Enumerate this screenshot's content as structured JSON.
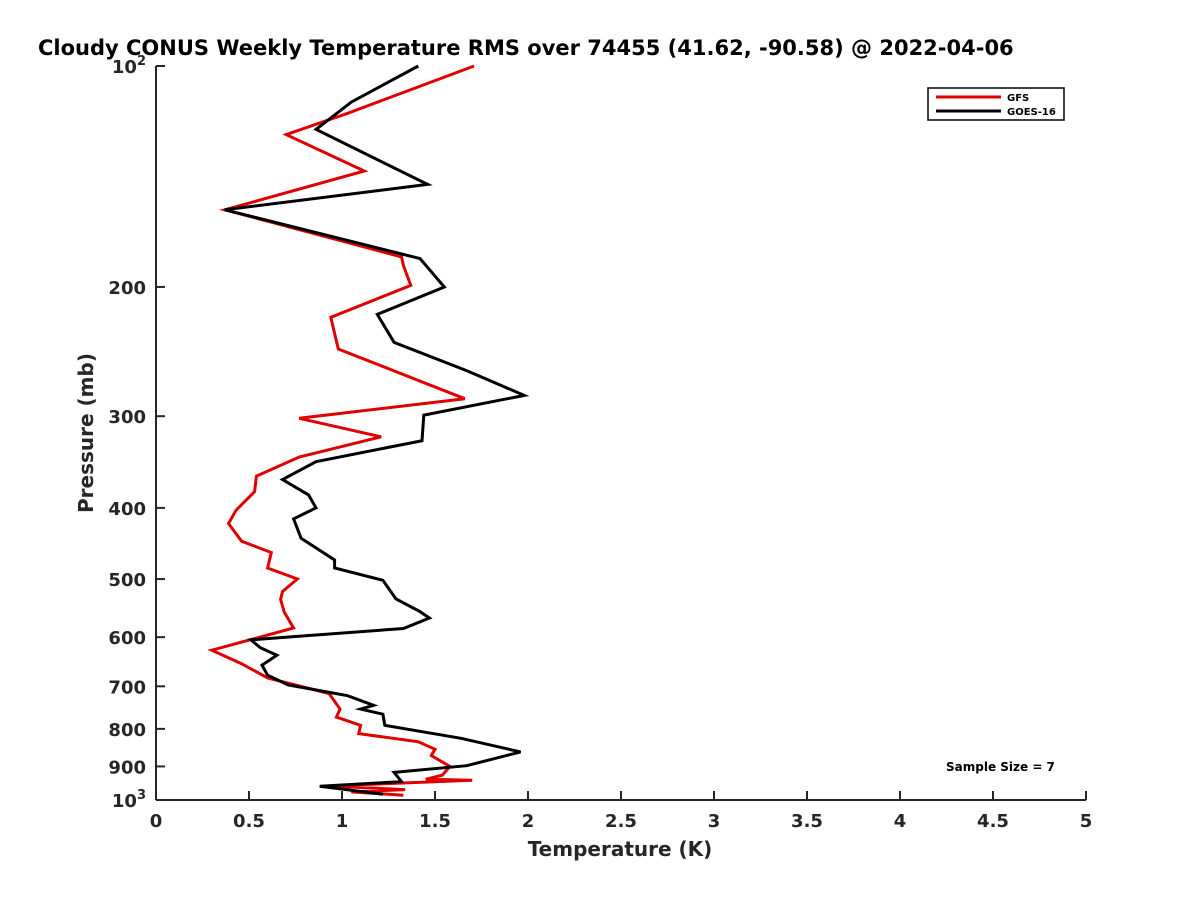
{
  "chart_data": {
    "type": "line",
    "title": "Cloudy CONUS Weekly Temperature RMS over 74455 (41.62, -90.58) @ 2022-04-06",
    "xlabel": "Temperature (K)",
    "ylabel": "Pressure (mb)",
    "xlim": [
      0,
      5
    ],
    "ylim": [
      100,
      1000
    ],
    "y_scale": "log",
    "y_reversed": true,
    "grid": false,
    "legend_position": "top-right",
    "x_ticks": [
      0,
      0.5,
      1,
      1.5,
      2,
      2.5,
      3,
      3.5,
      4,
      4.5,
      5
    ],
    "x_tick_labels": [
      "0",
      "0.5",
      "1",
      "1.5",
      "2",
      "2.5",
      "3",
      "3.5",
      "4",
      "4.5",
      "5"
    ],
    "y_ticks": [
      {
        "value": 100,
        "label": "10",
        "sup": "2"
      },
      {
        "value": 200,
        "label": "200",
        "sup": ""
      },
      {
        "value": 300,
        "label": "300",
        "sup": ""
      },
      {
        "value": 400,
        "label": "400",
        "sup": ""
      },
      {
        "value": 500,
        "label": "500",
        "sup": ""
      },
      {
        "value": 600,
        "label": "600",
        "sup": ""
      },
      {
        "value": 700,
        "label": "700",
        "sup": ""
      },
      {
        "value": 800,
        "label": "800",
        "sup": ""
      },
      {
        "value": 900,
        "label": "900",
        "sup": ""
      },
      {
        "value": 1000,
        "label": "10",
        "sup": "3"
      }
    ],
    "annotation": "Sample Size = 7",
    "series": [
      {
        "name": "GFS",
        "color": "#e00000",
        "points": [
          [
            1.71,
            100
          ],
          [
            1.03,
            116
          ],
          [
            0.7,
            124
          ],
          [
            1.12,
            139
          ],
          [
            0.37,
            157
          ],
          [
            1.32,
            182
          ],
          [
            1.33,
            187
          ],
          [
            1.37,
            199
          ],
          [
            0.94,
            220
          ],
          [
            0.98,
            243
          ],
          [
            1.66,
            284
          ],
          [
            0.77,
            302
          ],
          [
            1.21,
            320
          ],
          [
            0.77,
            341
          ],
          [
            0.54,
            362
          ],
          [
            0.53,
            380
          ],
          [
            0.43,
            403
          ],
          [
            0.39,
            420
          ],
          [
            0.46,
            444
          ],
          [
            0.62,
            460
          ],
          [
            0.6,
            483
          ],
          [
            0.76,
            500
          ],
          [
            0.68,
            520
          ],
          [
            0.67,
            533
          ],
          [
            0.69,
            555
          ],
          [
            0.74,
            583
          ],
          [
            0.3,
            625
          ],
          [
            0.46,
            652
          ],
          [
            0.6,
            682
          ],
          [
            0.93,
            716
          ],
          [
            0.99,
            752
          ],
          [
            0.97,
            771
          ],
          [
            1.1,
            791
          ],
          [
            1.09,
            812
          ],
          [
            1.41,
            833
          ],
          [
            1.5,
            853
          ],
          [
            1.48,
            870
          ],
          [
            1.58,
            900
          ],
          [
            1.54,
            925
          ],
          [
            1.45,
            937
          ],
          [
            1.7,
            940
          ],
          [
            0.93,
            957
          ],
          [
            1.34,
            968
          ],
          [
            1.05,
            975
          ],
          [
            1.33,
            985
          ]
        ]
      },
      {
        "name": "GOES-16",
        "color": "#000000",
        "points": [
          [
            1.41,
            100
          ],
          [
            1.05,
            112
          ],
          [
            0.86,
            122
          ],
          [
            1.46,
            145
          ],
          [
            0.37,
            157
          ],
          [
            1.42,
            183
          ],
          [
            1.55,
            200
          ],
          [
            1.19,
            218
          ],
          [
            1.28,
            238
          ],
          [
            1.67,
            260
          ],
          [
            1.98,
            281
          ],
          [
            1.44,
            299
          ],
          [
            1.43,
            324
          ],
          [
            0.86,
            346
          ],
          [
            0.68,
            366
          ],
          [
            0.82,
            384
          ],
          [
            0.86,
            400
          ],
          [
            0.74,
            414
          ],
          [
            0.78,
            440
          ],
          [
            0.96,
            471
          ],
          [
            0.96,
            483
          ],
          [
            1.22,
            502
          ],
          [
            1.29,
            532
          ],
          [
            1.42,
            554
          ],
          [
            1.47,
            565
          ],
          [
            1.33,
            584
          ],
          [
            0.51,
            605
          ],
          [
            0.56,
            620
          ],
          [
            0.65,
            635
          ],
          [
            0.57,
            655
          ],
          [
            0.6,
            676
          ],
          [
            0.71,
            697
          ],
          [
            1.03,
            721
          ],
          [
            1.17,
            743
          ],
          [
            1.1,
            752
          ],
          [
            1.22,
            764
          ],
          [
            1.23,
            791
          ],
          [
            1.64,
            824
          ],
          [
            1.96,
            860
          ],
          [
            1.67,
            898
          ],
          [
            1.28,
            917
          ],
          [
            1.32,
            944
          ],
          [
            0.88,
            958
          ],
          [
            1.22,
            982
          ]
        ]
      }
    ]
  }
}
